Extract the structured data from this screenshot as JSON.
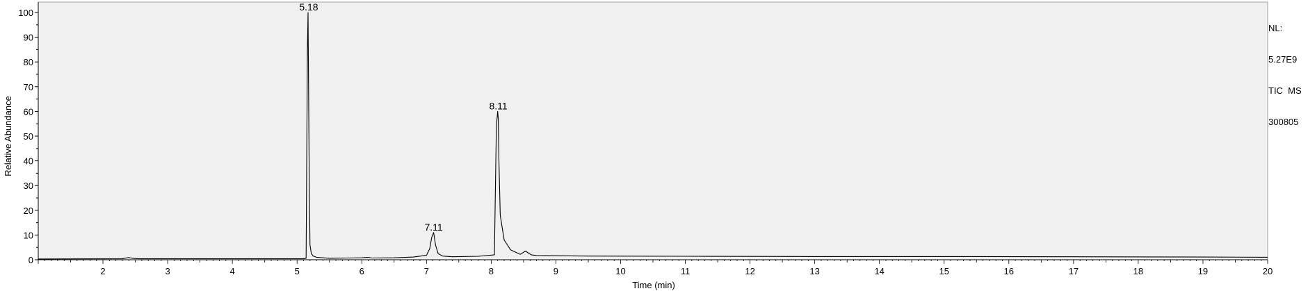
{
  "chart_data": {
    "type": "line",
    "xlabel": "Time (min)",
    "ylabel": "Relative Abundance",
    "xlim": [
      1,
      20
    ],
    "ylim": [
      0,
      100
    ],
    "x_ticks": [
      2,
      3,
      4,
      5,
      6,
      7,
      8,
      9,
      10,
      11,
      12,
      13,
      14,
      15,
      16,
      17,
      18,
      19,
      20
    ],
    "y_ticks": [
      0,
      10,
      20,
      30,
      40,
      50,
      60,
      70,
      80,
      90,
      100
    ],
    "grid": false,
    "background": "#f0f0f0",
    "line_color": "#000000",
    "annotations": [
      {
        "x": 5.18,
        "y": 100,
        "text": "5.18"
      },
      {
        "x": 7.11,
        "y": 11,
        "text": "7.11"
      },
      {
        "x": 8.11,
        "y": 60,
        "text": "8.11"
      }
    ],
    "series": [
      {
        "x": [
          1.0,
          2.3,
          2.4,
          2.45,
          2.55,
          3.5,
          4.5,
          5.1,
          5.14,
          5.16,
          5.17,
          5.18,
          5.19,
          5.2,
          5.22,
          5.25,
          5.3,
          5.5,
          6.0,
          6.1,
          6.15,
          6.5,
          6.8,
          7.0,
          7.05,
          7.08,
          7.11,
          7.14,
          7.18,
          7.25,
          7.4,
          7.8,
          8.05,
          8.08,
          8.1,
          8.11,
          8.12,
          8.14,
          8.2,
          8.3,
          8.45,
          8.53,
          8.57,
          8.62,
          8.7,
          9.5,
          11.0,
          13.0,
          15.0,
          17.0,
          19.0,
          20.0
        ],
        "y": [
          0.3,
          0.4,
          0.9,
          0.6,
          0.4,
          0.4,
          0.4,
          0.4,
          0.6,
          85,
          100,
          60,
          26,
          6,
          2.5,
          1.5,
          1.0,
          0.6,
          0.8,
          1.0,
          0.7,
          0.8,
          1.1,
          1.8,
          4.5,
          9,
          11,
          6,
          2.5,
          1.5,
          1.2,
          1.4,
          2,
          54,
          60,
          57,
          40,
          18,
          8,
          4,
          2.2,
          3.5,
          2.8,
          2.0,
          1.7,
          1.5,
          1.4,
          1.3,
          1.3,
          1.2,
          1.1,
          1.0
        ]
      }
    ]
  },
  "info": {
    "nl_label": "NL:",
    "nl_value": "5.27E9",
    "detector": "TIC  MS",
    "sample": "300805"
  }
}
